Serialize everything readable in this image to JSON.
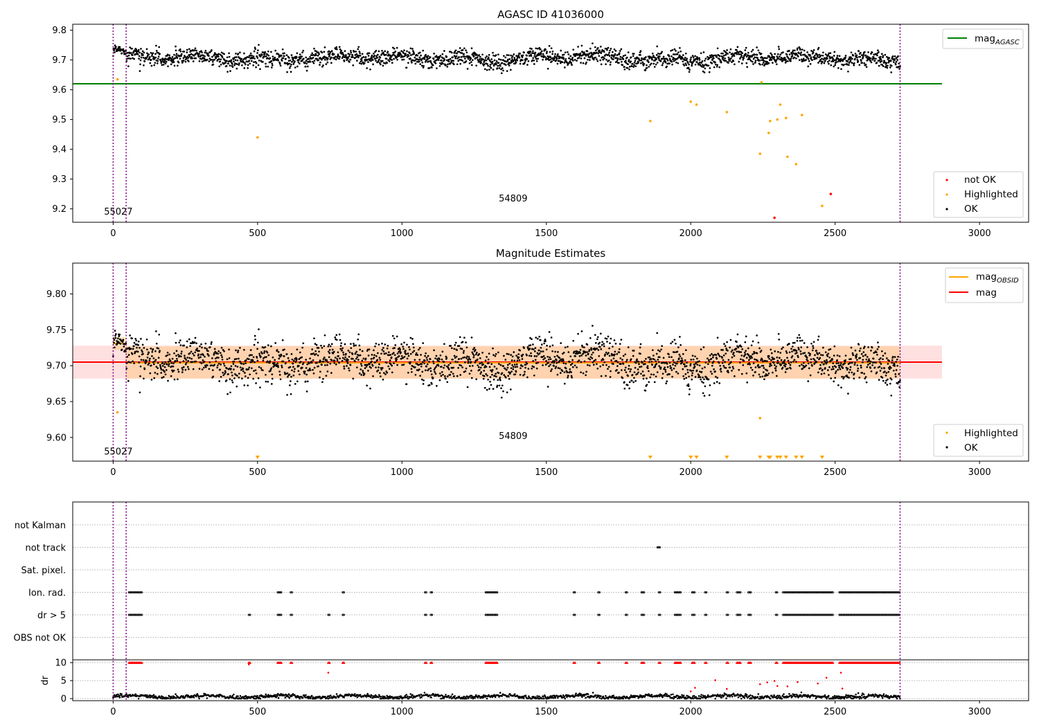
{
  "chart_data": [
    {
      "type": "scatter",
      "title": "AGASC ID 41036000",
      "xlim": [
        -140,
        3170
      ],
      "ylim": [
        9.155,
        9.82
      ],
      "xticks": [
        0,
        500,
        1000,
        1500,
        2000,
        2500,
        3000
      ],
      "yticks": [
        9.2,
        9.3,
        9.4,
        9.5,
        9.6,
        9.7,
        9.8
      ],
      "annotations": [
        {
          "text": "55027",
          "x": 18,
          "y": 9.18
        },
        {
          "text": "54809",
          "x": 1385,
          "y": 9.225
        }
      ],
      "vlines": [
        0,
        45,
        2725
      ],
      "hlines": [
        {
          "name": "mag_AGASC",
          "y": 9.62,
          "x_range": [
            -140,
            2870
          ],
          "color": "#008000"
        }
      ],
      "ok_series": {
        "name": "OK",
        "color": "#000000",
        "x_range": [
          0,
          2725
        ],
        "center": 9.706,
        "spread": 0.022
      },
      "highlighted": {
        "name": "Highlighted",
        "color": "#ffa500",
        "x": [
          15,
          500,
          1860,
          2000,
          2020,
          2125,
          2240,
          2245,
          2270,
          2275,
          2300,
          2310,
          2330,
          2335,
          2365,
          2385,
          2455
        ],
        "y": [
          9.635,
          9.44,
          9.495,
          9.56,
          9.55,
          9.525,
          9.385,
          9.625,
          9.455,
          9.495,
          9.5,
          9.55,
          9.505,
          9.375,
          9.35,
          9.515,
          9.21
        ]
      },
      "not_ok": {
        "name": "not OK",
        "color": "#ff0000",
        "x": [
          2290,
          2485
        ],
        "y": [
          9.17,
          9.25
        ]
      },
      "legend_upper": [
        {
          "label": "mag",
          "sub": "AGASC",
          "color": "#008000"
        }
      ],
      "legend_lower": [
        {
          "label": "not OK",
          "color": "#ff0000"
        },
        {
          "label": "Highlighted",
          "color": "#ffa500"
        },
        {
          "label": "OK",
          "color": "#000000"
        }
      ]
    },
    {
      "type": "scatter",
      "title": "Magnitude Estimates",
      "xlim": [
        -140,
        3170
      ],
      "ylim": [
        9.567,
        9.843
      ],
      "xticks": [
        0,
        500,
        1000,
        1500,
        2000,
        2500,
        3000
      ],
      "yticks": [
        9.6,
        9.65,
        9.7,
        9.75,
        9.8
      ],
      "ytick_labels": [
        "9.60",
        "9.65",
        "9.70",
        "9.75",
        "9.80"
      ],
      "annotations": [
        {
          "text": "55027",
          "x": 18,
          "y": 9.576
        },
        {
          "text": "54809",
          "x": 1385,
          "y": 9.598
        }
      ],
      "vlines": [
        0,
        45,
        2725
      ],
      "mag_line": {
        "name": "mag",
        "y": 9.705,
        "band": [
          9.682,
          9.728
        ],
        "x_range": [
          -140,
          2870
        ],
        "color": "#ff0000"
      },
      "mag_obsid": [
        {
          "x": [
            0,
            45
          ],
          "y": 9.731,
          "band": [
            9.722,
            9.74
          ]
        },
        {
          "x": [
            45,
            2725
          ],
          "y": 9.704,
          "band": [
            9.682,
            9.727
          ]
        }
      ],
      "ok_series": {
        "name": "OK",
        "color": "#000000",
        "x_range": [
          0,
          2725
        ],
        "center": 9.706,
        "spread": 0.022
      },
      "highlighted": {
        "name": "Highlighted",
        "color": "#ffa500",
        "x": [
          15,
          2240
        ],
        "y": [
          9.635,
          9.627
        ]
      },
      "down_markers": [
        500,
        1860,
        2000,
        2020,
        2125,
        2240,
        2270,
        2275,
        2300,
        2310,
        2330,
        2365,
        2385,
        2455
      ],
      "legend_upper": [
        {
          "label": "mag",
          "sub": "OBSID",
          "color": "#ffa500"
        },
        {
          "label": "mag",
          "sub": "",
          "color": "#ff0000"
        }
      ],
      "legend_lower": [
        {
          "label": "Highlighted",
          "color": "#ffa500"
        },
        {
          "label": "OK",
          "color": "#000000"
        }
      ]
    },
    {
      "type": "scatter",
      "title": "",
      "xlim": [
        -140,
        3170
      ],
      "xticks": [
        0,
        500,
        1000,
        1500,
        2000,
        2500,
        3000
      ],
      "vlines": [
        0,
        45,
        2725
      ],
      "flag_rows": [
        "not Kalman",
        "not track",
        "Sat. pixel.",
        "Ion. rad.",
        "dr > 5",
        "OBS not OK"
      ],
      "flags": {
        "not track": [
          [
            1885,
            1895
          ]
        ],
        "Ion. rad.": [
          [
            55,
            100
          ],
          [
            570,
            585
          ],
          [
            615,
            620
          ],
          [
            795,
            800
          ],
          [
            1080,
            1085
          ],
          [
            1100,
            1105
          ],
          [
            1290,
            1330
          ],
          [
            1595,
            1600
          ],
          [
            1680,
            1685
          ],
          [
            1775,
            1780
          ],
          [
            1830,
            1840
          ],
          [
            1890,
            1895
          ],
          [
            1945,
            1965
          ],
          [
            2005,
            2015
          ],
          [
            2050,
            2055
          ],
          [
            2125,
            2130
          ],
          [
            2160,
            2175
          ],
          [
            2200,
            2210
          ],
          [
            2295,
            2300
          ],
          [
            2320,
            2495
          ],
          [
            2515,
            2725
          ]
        ],
        "dr > 5": [
          [
            55,
            100
          ],
          [
            470,
            475
          ],
          [
            570,
            585
          ],
          [
            615,
            620
          ],
          [
            745,
            750
          ],
          [
            795,
            800
          ],
          [
            1080,
            1085
          ],
          [
            1100,
            1105
          ],
          [
            1290,
            1330
          ],
          [
            1595,
            1600
          ],
          [
            1680,
            1685
          ],
          [
            1775,
            1780
          ],
          [
            1830,
            1840
          ],
          [
            1890,
            1895
          ],
          [
            1945,
            1965
          ],
          [
            2005,
            2015
          ],
          [
            2050,
            2055
          ],
          [
            2125,
            2130
          ],
          [
            2160,
            2175
          ],
          [
            2200,
            2210
          ],
          [
            2295,
            2300
          ],
          [
            2320,
            2495
          ],
          [
            2515,
            2725
          ]
        ]
      },
      "dr_axis": {
        "ylabel": "dr",
        "yticks": [
          0,
          5,
          10
        ],
        "ylim": [
          -0.8,
          10.8
        ],
        "cap": 10,
        "outliers_x": [
          470,
          745,
          2015,
          2000,
          2085,
          2125,
          2240,
          2265,
          2290,
          2300,
          2335,
          2370,
          2440,
          2470,
          2520,
          2525
        ],
        "outliers_y": [
          9.5,
          7.2,
          3.0,
          2.0,
          5.1,
          2.7,
          4.0,
          4.5,
          4.9,
          3.5,
          3.4,
          4.6,
          4.2,
          5.8,
          7.2,
          2.8
        ]
      }
    }
  ]
}
